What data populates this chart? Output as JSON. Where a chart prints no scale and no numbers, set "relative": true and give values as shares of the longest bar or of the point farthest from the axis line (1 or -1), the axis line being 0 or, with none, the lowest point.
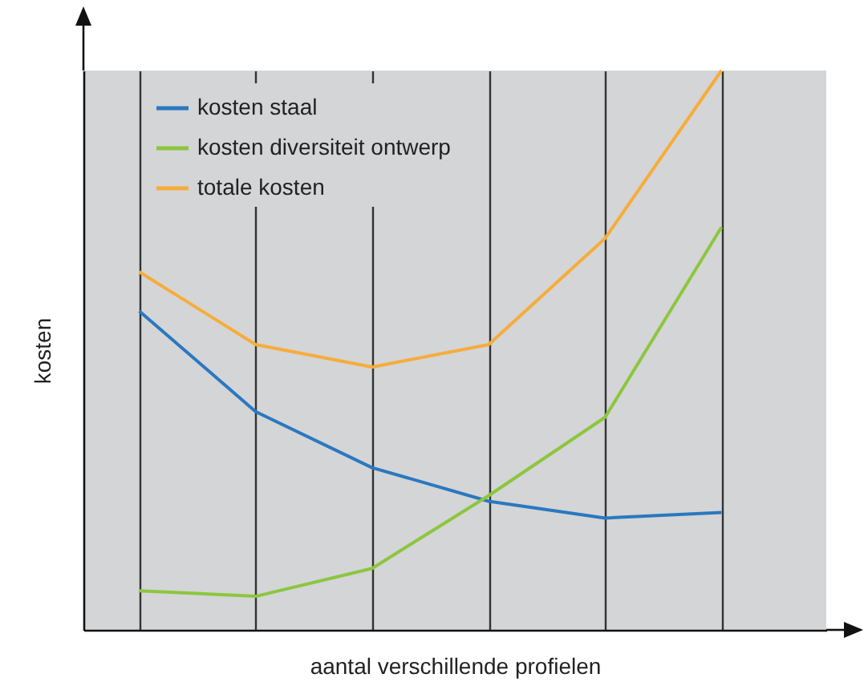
{
  "chart_data": {
    "type": "line",
    "relative": true,
    "xlabel": "aantal verschillende profielen",
    "ylabel": "kosten",
    "categories": [
      null,
      null,
      null,
      null,
      null,
      null
    ],
    "series": [
      {
        "name": "kosten staal",
        "color": "#2a78c0",
        "values": [
          0.57,
          0.39,
          0.29,
          0.23,
          0.2,
          0.21
        ]
      },
      {
        "name": "kosten diversiteit ontwerp",
        "color": "#8cc63f",
        "values": [
          0.07,
          0.06,
          0.11,
          0.24,
          0.38,
          0.72
        ]
      },
      {
        "name": "totale kosten",
        "color": "#f7ac3a",
        "values": [
          0.64,
          0.51,
          0.47,
          0.51,
          0.7,
          1
        ]
      }
    ],
    "grid": "x",
    "legend": "top left",
    "tick_labels": false,
    "marker": "none",
    "line_style": "solid"
  }
}
